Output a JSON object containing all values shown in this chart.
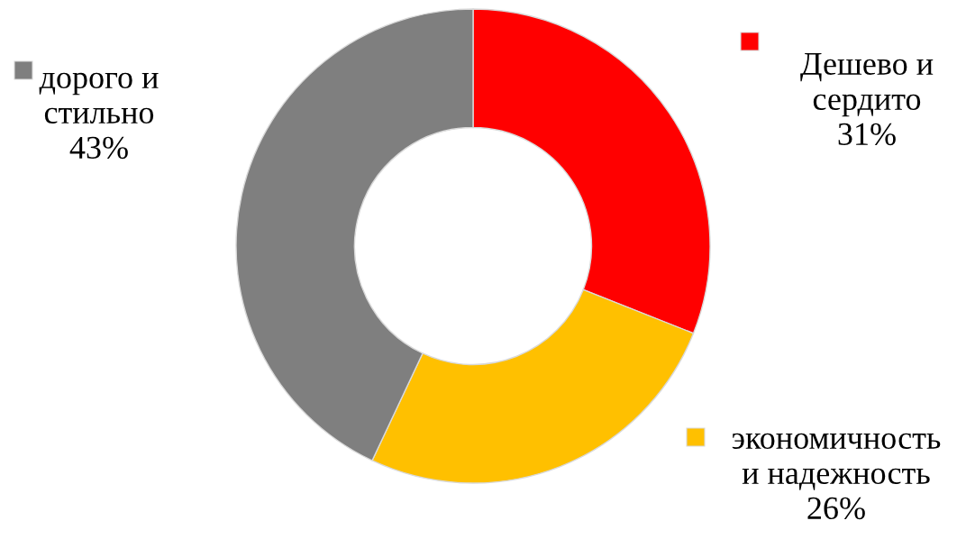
{
  "chart_data": {
    "type": "donut",
    "categories": [
      "Дешево и\nсердито",
      "экономичность\nи надежность",
      "дорого и\nстильно"
    ],
    "values": [
      31,
      26,
      43
    ],
    "colors": [
      "#ff0000",
      "#ffc000",
      "#7f7f7f"
    ],
    "value_labels": [
      "31%",
      "26%",
      "43%"
    ]
  }
}
